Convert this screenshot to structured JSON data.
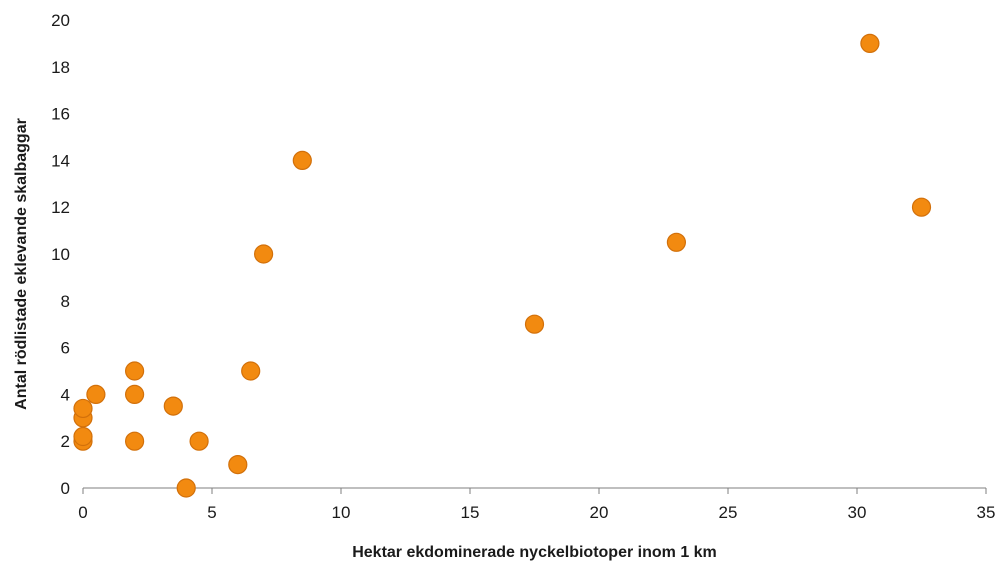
{
  "chart_data": {
    "type": "scatter",
    "xlabel": "Hektar ekdominerade nyckelbiotoper inom 1 km",
    "ylabel": "Antal rödlistade eklevande skalbaggar",
    "xlim": [
      0,
      35
    ],
    "ylim": [
      0,
      20
    ],
    "x_ticks": [
      0,
      5,
      10,
      15,
      20,
      25,
      30,
      35
    ],
    "y_ticks": [
      0,
      2,
      4,
      6,
      8,
      10,
      12,
      14,
      16,
      18,
      20
    ],
    "grid": false,
    "marker_color": "#F28A10",
    "marker_stroke": "#D2700A",
    "points": [
      {
        "x": 0,
        "y": 2
      },
      {
        "x": 0,
        "y": 2.2
      },
      {
        "x": 0,
        "y": 3
      },
      {
        "x": 0,
        "y": 3.4
      },
      {
        "x": 0.5,
        "y": 4
      },
      {
        "x": 2,
        "y": 2
      },
      {
        "x": 2,
        "y": 4
      },
      {
        "x": 2,
        "y": 5
      },
      {
        "x": 3.5,
        "y": 3.5
      },
      {
        "x": 4,
        "y": 0
      },
      {
        "x": 4.5,
        "y": 2
      },
      {
        "x": 6,
        "y": 1
      },
      {
        "x": 6.5,
        "y": 5
      },
      {
        "x": 7,
        "y": 10
      },
      {
        "x": 8.5,
        "y": 14
      },
      {
        "x": 17.5,
        "y": 7
      },
      {
        "x": 23,
        "y": 10.5
      },
      {
        "x": 30.5,
        "y": 19
      },
      {
        "x": 32.5,
        "y": 12
      }
    ]
  }
}
